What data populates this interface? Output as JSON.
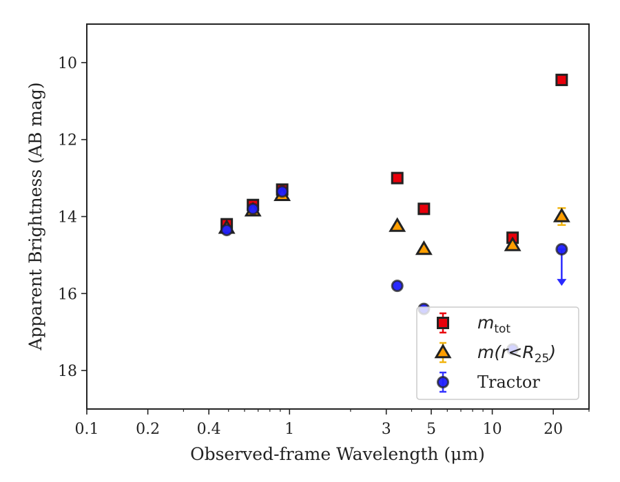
{
  "chart_data": {
    "type": "scatter",
    "xscale": "log",
    "xlabel": "Observed-frame Wavelength (μm)",
    "ylabel": "Apparent Brightness (AB mag)",
    "xlim": [
      0.1,
      30
    ],
    "ylim": [
      19,
      9
    ],
    "y_inverted": true,
    "x_ticks": [
      0.1,
      0.2,
      0.4,
      1,
      3,
      5,
      10,
      20
    ],
    "x_tick_labels": [
      "0.1",
      "0.2",
      "0.4",
      "1",
      "3",
      "5",
      "10",
      "20"
    ],
    "y_ticks": [
      10,
      12,
      14,
      16,
      18
    ],
    "y_tick_labels": [
      "10",
      "12",
      "14",
      "16",
      "18"
    ],
    "grid": false,
    "legend_position": "bottom-right",
    "series": [
      {
        "name": "m_tot",
        "legend_main": "m",
        "legend_sub": "tot",
        "legend_after": "",
        "marker": "square",
        "fill": "#e8000b",
        "edge": "#222222",
        "errcolor": "#e8000b",
        "points": [
          {
            "x": 0.49,
            "y": 14.2
          },
          {
            "x": 0.66,
            "y": 13.7
          },
          {
            "x": 0.92,
            "y": 13.3
          },
          {
            "x": 3.4,
            "y": 13.0
          },
          {
            "x": 4.6,
            "y": 13.8
          },
          {
            "x": 12.6,
            "y": 14.55
          },
          {
            "x": 22.0,
            "y": 10.45
          }
        ]
      },
      {
        "name": "m(r < R_25)",
        "legend_main": "m(r<R",
        "legend_sub": "25",
        "legend_after": ")",
        "marker": "triangle",
        "fill": "#ff9e00",
        "edge": "#222222",
        "errcolor": "#f1b40f",
        "points": [
          {
            "x": 0.49,
            "y": 14.3
          },
          {
            "x": 0.66,
            "y": 13.85
          },
          {
            "x": 0.92,
            "y": 13.45
          },
          {
            "x": 3.4,
            "y": 14.25
          },
          {
            "x": 4.6,
            "y": 14.85
          },
          {
            "x": 12.6,
            "y": 14.75
          },
          {
            "x": 22.0,
            "y": 14.0,
            "err": 0.22
          }
        ]
      },
      {
        "name": "Tractor",
        "legend_main": "Tractor",
        "legend_sub": "",
        "legend_after": "",
        "marker": "circle",
        "fill": "#1f1fff",
        "edge": "#222222",
        "errcolor": "#3333ff",
        "points": [
          {
            "x": 0.49,
            "y": 14.35
          },
          {
            "x": 0.66,
            "y": 13.8
          },
          {
            "x": 0.92,
            "y": 13.35
          },
          {
            "x": 3.4,
            "y": 15.8
          },
          {
            "x": 4.6,
            "y": 16.4
          },
          {
            "x": 12.6,
            "y": 17.45
          },
          {
            "x": 22.0,
            "y": 14.85,
            "upper_limit": true,
            "arrow_to": 15.8
          }
        ]
      }
    ]
  }
}
